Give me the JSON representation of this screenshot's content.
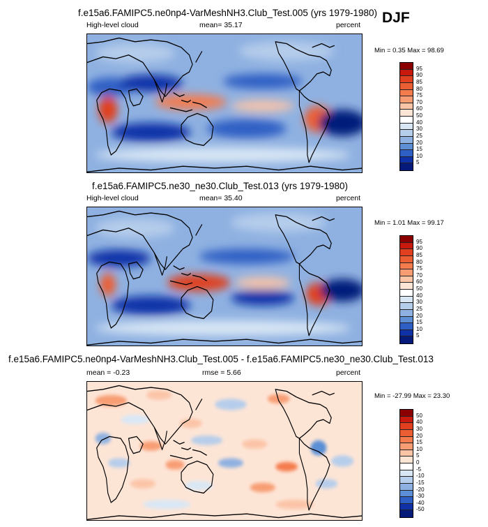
{
  "season": "DJF",
  "panels": [
    {
      "title": "f.e15a6.FAMIPC5.ne0np4-VarMeshNH3.Club_Test.005 (yrs 1979-1980)",
      "left_label": "High-level cloud",
      "mean_label": "mean=  35.17",
      "units": "percent",
      "minmax": "Min =  0.35 Max =  98.69"
    },
    {
      "title": "f.e15a6.FAMIPC5.ne30_ne30.Club_Test.013 (yrs 1979-1980)",
      "left_label": "High-level cloud",
      "mean_label": "mean=  35.40",
      "units": "percent",
      "minmax": "Min =  1.01 Max =  99.17"
    },
    {
      "title": "f.e15a6.FAMIPC5.ne0np4-VarMeshNH3.Club_Test.005 - f.e15a6.FAMIPC5.ne30_ne30.Club_Test.013",
      "left_label": "mean = -0.23",
      "mid_label": "rmse =  5.66",
      "units": "percent",
      "minmax": "Min = -27.99 Max =  23.30"
    }
  ],
  "colorbar_abs": {
    "labels": [
      "95",
      "90",
      "85",
      "80",
      "75",
      "70",
      "60",
      "50",
      "40",
      "30",
      "25",
      "20",
      "15",
      "10",
      "5"
    ],
    "colors": [
      "#8b0000",
      "#c8190f",
      "#e0401f",
      "#eb5e34",
      "#f47b4d",
      "#f89d73",
      "#fbc4a7",
      "#fde5d6",
      "#ffffff",
      "#d9e7f5",
      "#b6cdeb",
      "#8fb1e1",
      "#5c8fd5",
      "#2d5fc4",
      "#1030a8",
      "#061a7a"
    ]
  },
  "colorbar_diff": {
    "labels": [
      "50",
      "40",
      "30",
      "20",
      "15",
      "10",
      "5",
      "0",
      "-5",
      "-10",
      "-15",
      "-20",
      "-30",
      "-40",
      "-50"
    ],
    "colors": [
      "#8b0000",
      "#c8190f",
      "#e0401f",
      "#eb5e34",
      "#f47b4d",
      "#f89d73",
      "#fbc4a7",
      "#fde5d6",
      "#ffffff",
      "#d9e7f5",
      "#b6cdeb",
      "#8fb1e1",
      "#5c8fd5",
      "#2d5fc4",
      "#1030a8",
      "#061a7a"
    ]
  },
  "chart_data": [
    {
      "type": "heatmap",
      "title": "f.e15a6.FAMIPC5.ne0np4-VarMeshNH3.Club_Test.005 (yrs 1979-1980)",
      "variable": "High-level cloud",
      "units": "percent",
      "mean": 35.17,
      "min": 0.35,
      "max": 98.69,
      "contour_levels": [
        5,
        10,
        15,
        20,
        25,
        30,
        40,
        50,
        60,
        70,
        75,
        80,
        85,
        90,
        95
      ]
    },
    {
      "type": "heatmap",
      "title": "f.e15a6.FAMIPC5.ne30_ne30.Club_Test.013 (yrs 1979-1980)",
      "variable": "High-level cloud",
      "units": "percent",
      "mean": 35.4,
      "min": 1.01,
      "max": 99.17,
      "contour_levels": [
        5,
        10,
        15,
        20,
        25,
        30,
        40,
        50,
        60,
        70,
        75,
        80,
        85,
        90,
        95
      ]
    },
    {
      "type": "heatmap",
      "title": "f.e15a6.FAMIPC5.ne0np4-VarMeshNH3.Club_Test.005 - f.e15a6.FAMIPC5.ne30_ne30.Club_Test.013",
      "units": "percent",
      "mean": -0.23,
      "rmse": 5.66,
      "min": -27.99,
      "max": 23.3,
      "contour_levels": [
        -50,
        -40,
        -30,
        -20,
        -15,
        -10,
        -5,
        0,
        5,
        10,
        15,
        20,
        30,
        40,
        50
      ]
    }
  ]
}
